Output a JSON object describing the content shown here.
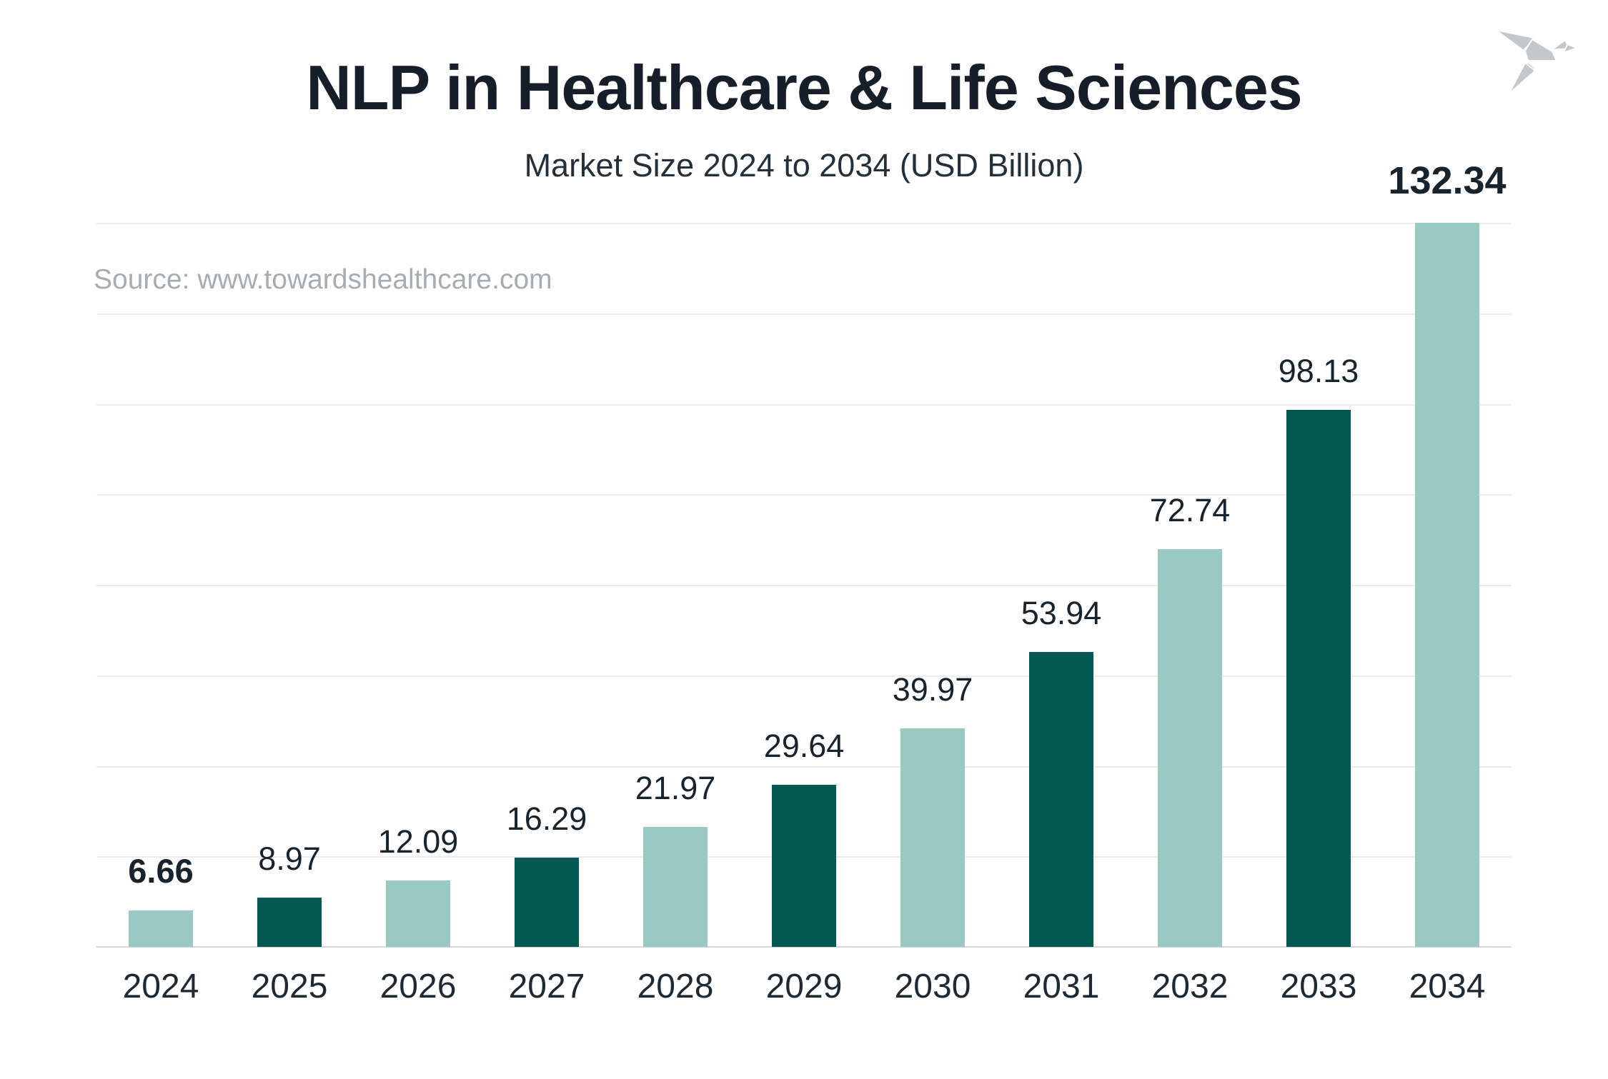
{
  "header": {
    "title": "NLP in Healthcare & Life Sciences",
    "subtitle": "Market Size 2024 to 2034 (USD Billion)",
    "source_note": "Source: www.towardshealthcare.com"
  },
  "logo": {
    "icon": "origami-bird-icon",
    "color": "#C5C8CA"
  },
  "colors": {
    "bar_light_teal": "#9AC8C2",
    "bar_dark_teal": "#035852",
    "value_label": "#17242E",
    "axis_label": "#1D2A34",
    "gridline": "#EDEDEE",
    "axis_line": "#D5D7D8",
    "title_text": "#161F29",
    "source_text": "#A7ACB1"
  },
  "chart_data": {
    "type": "bar",
    "title": "NLP in Healthcare & Life Sciences",
    "subtitle": "Market Size 2024 to 2034 (USD Billion)",
    "unit": "USD Billion",
    "source": "Source: www.towardshealthcare.com",
    "categories": [
      "2024",
      "2025",
      "2026",
      "2027",
      "2028",
      "2029",
      "2030",
      "2031",
      "2032",
      "2033",
      "2034"
    ],
    "values": [
      6.66,
      8.97,
      12.09,
      16.29,
      21.97,
      29.64,
      39.97,
      53.94,
      72.74,
      98.13,
      132.34
    ],
    "value_label_format": "2-decimals",
    "bold_value_indexes": [
      0,
      10
    ],
    "bar_colors_alternating": [
      "#9AC8C2",
      "#035852"
    ],
    "xlabel": "",
    "ylabel": "",
    "ylim": [
      0,
      140
    ],
    "grid": true,
    "gridline_count": 8,
    "legend": "none",
    "y_axis_ticks": "none"
  }
}
